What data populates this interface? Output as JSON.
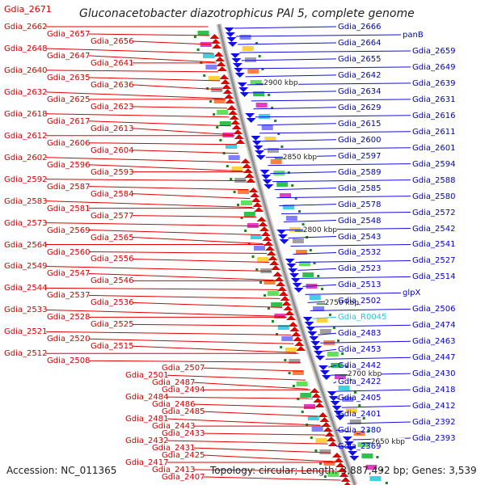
{
  "title": "Gluconacetobacter diazotrophicus PAl 5, complete genome",
  "corner_label": "Gdia_2671",
  "footer": {
    "accession": "Accession: NC_011365",
    "summary": "Topology: circular; Length: 3,887,492 bp; Genes: 3,539"
  },
  "colors": {
    "forward": "#e00000",
    "reverse": "#1010e0",
    "rna": "#30c0e0",
    "backbone": "#909090",
    "tick": "#208020"
  },
  "scale_labels": [
    "2900 kbp",
    "2850 kbp",
    "2800 kbp",
    "2750 kbp",
    "2700 kbp",
    "2650 kbp"
  ],
  "left_labels": [
    "Gdia_2662",
    "Gdia_2657",
    "Gdia_2656",
    "Gdia_2648",
    "Gdia_2647",
    "Gdia_2641",
    "Gdia_2640",
    "Gdia_2635",
    "Gdia_2636",
    "Gdia_2632",
    "Gdia_2625",
    "Gdia_2623",
    "Gdia_2618",
    "Gdia_2617",
    "Gdia_2613",
    "Gdia_2612",
    "Gdia_2606",
    "Gdia_2604",
    "Gdia_2602",
    "Gdia_2596",
    "Gdia_2593",
    "Gdia_2592",
    "Gdia_2587",
    "Gdia_2584",
    "Gdia_2583",
    "Gdia_2581",
    "Gdia_2577",
    "Gdia_2573",
    "Gdia_2569",
    "Gdia_2565",
    "Gdia_2564",
    "Gdia_2560",
    "Gdia_2556",
    "Gdia_2549",
    "Gdia_2547",
    "Gdia_2546",
    "Gdia_2544",
    "Gdia_2537",
    "Gdia_2536",
    "Gdia_2533",
    "Gdia_2528",
    "Gdia_2525",
    "Gdia_2521",
    "Gdia_2520",
    "Gdia_2515",
    "Gdia_2512",
    "Gdia_2508",
    "Gdia_2507",
    "Gdia_2501",
    "Gdia_2487",
    "Gdia_2494",
    "Gdia_2484",
    "Gdia_2486",
    "Gdia_2485",
    "Gdia_2481",
    "Gdia_2443",
    "Gdia_2433",
    "Gdia_2432",
    "Gdia_2431",
    "Gdia_2425",
    "Gdia_2417",
    "Gdia_2413",
    "Gdia_2407"
  ],
  "right_labels": [
    "Gdia_2666",
    "panB",
    "Gdia_2664",
    "Gdia_2659",
    "Gdia_2655",
    "Gdia_2649",
    "Gdia_2642",
    "Gdia_2639",
    "Gdia_2634",
    "Gdia_2631",
    "Gdia_2629",
    "Gdia_2616",
    "Gdia_2615",
    "Gdia_2611",
    "Gdia_2600",
    "Gdia_2601",
    "Gdia_2597",
    "Gdia_2594",
    "Gdia_2589",
    "Gdia_2588",
    "Gdia_2585",
    "Gdia_2580",
    "Gdia_2578",
    "Gdia_2572",
    "Gdia_2548",
    "Gdia_2542",
    "Gdia_2543",
    "Gdia_2541",
    "Gdia_2532",
    "Gdia_2527",
    "Gdia_2523",
    "Gdia_2514",
    "Gdia_2513",
    "glpX",
    "Gdia_2502",
    "Gdia_2506",
    "Gdia_R0045",
    "Gdia_2474",
    "Gdia_2483",
    "Gdia_2463",
    "Gdia_2453",
    "Gdia_2447",
    "Gdia_2442",
    "Gdia_2430",
    "Gdia_2422",
    "Gdia_2418",
    "Gdia_2405",
    "Gdia_2412",
    "Gdia_2401",
    "Gdia_2392",
    "Gdia_2380",
    "Gdia_2393",
    "Gdia_2369"
  ]
}
